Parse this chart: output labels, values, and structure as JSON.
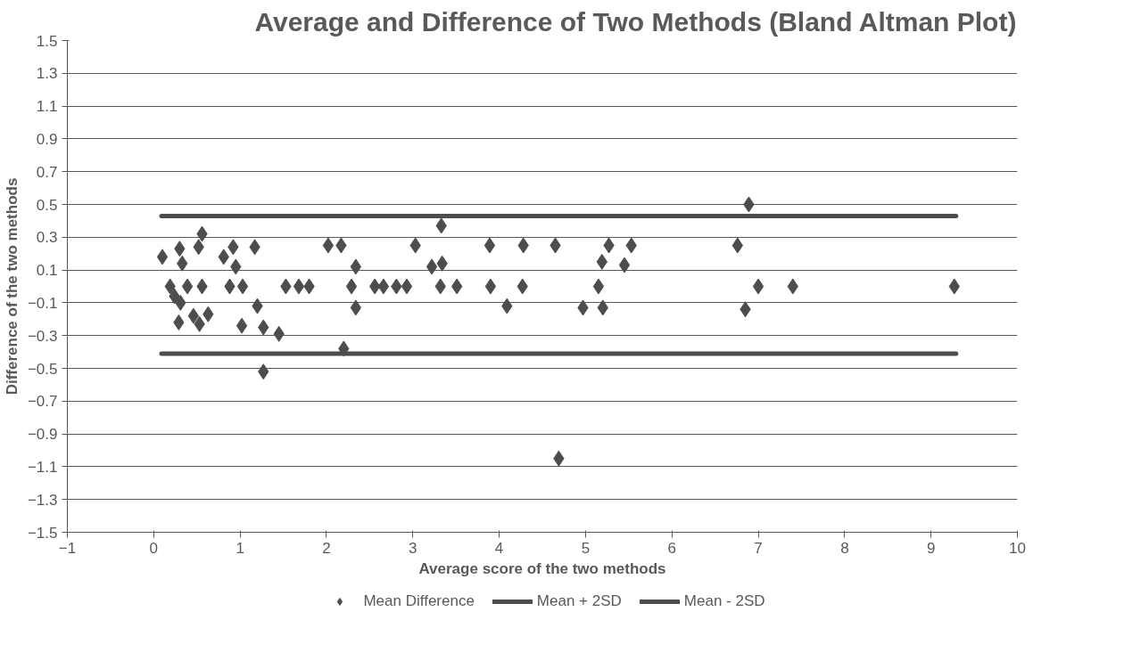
{
  "chart_data": {
    "type": "scatter",
    "title": "Average and Difference of Two Methods (Bland Altman Plot)",
    "xlabel": "Average score of the two methods",
    "ylabel": "Difference of the two methods",
    "xlim": [
      -1,
      10
    ],
    "xticks": [
      -1,
      0,
      1,
      2,
      3,
      4,
      5,
      6,
      7,
      8,
      9,
      10
    ],
    "ylim": [
      -1.5,
      1.5
    ],
    "yticks": [
      -1.5,
      -1.3,
      -1.1,
      -0.9,
      -0.7,
      -0.5,
      -0.3,
      -0.1,
      0.1,
      0.3,
      0.5,
      0.7,
      0.9,
      1.1,
      1.3,
      1.5
    ],
    "grid": "y",
    "legend": "bottom",
    "series": [
      {
        "name": "Mean Difference",
        "marker": "diamond",
        "color": "#4d4d4d",
        "x": [
          0.1,
          0.3,
          0.33,
          0.56,
          0.52,
          0.19,
          0.24,
          0.39,
          0.31,
          0.29,
          0.56,
          0.46,
          0.53,
          0.63,
          0.81,
          0.92,
          0.95,
          0.88,
          1.03,
          1.17,
          1.2,
          1.02,
          1.27,
          1.45,
          1.27,
          1.53,
          1.68,
          1.8,
          2.02,
          2.17,
          2.34,
          2.29,
          2.34,
          2.2,
          2.56,
          2.66,
          2.81,
          2.93,
          3.03,
          3.22,
          3.33,
          3.34,
          3.32,
          3.51,
          3.89,
          3.9,
          4.09,
          4.28,
          4.27,
          4.65,
          4.69,
          4.97,
          5.2,
          5.15,
          5.19,
          5.27,
          5.45,
          5.53,
          6.76,
          6.89,
          6.85,
          7.0,
          7.4,
          9.27
        ],
        "values": [
          0.18,
          0.23,
          0.14,
          0.32,
          0.24,
          0.0,
          -0.06,
          0.0,
          -0.1,
          -0.22,
          0.0,
          -0.18,
          -0.23,
          -0.17,
          0.18,
          0.24,
          0.12,
          0.0,
          0.0,
          0.24,
          -0.12,
          -0.24,
          -0.25,
          -0.29,
          -0.52,
          0.0,
          0.0,
          0.0,
          0.25,
          0.25,
          0.12,
          0.0,
          -0.13,
          -0.38,
          0.0,
          0.0,
          0.0,
          0.0,
          0.25,
          0.12,
          0.37,
          0.14,
          0.0,
          0.0,
          0.25,
          0.0,
          -0.12,
          0.25,
          0.0,
          0.25,
          -1.05,
          -0.13,
          -0.13,
          0.0,
          0.15,
          0.25,
          0.13,
          0.25,
          0.25,
          0.5,
          -0.14,
          0.0,
          0.0,
          0.0
        ]
      },
      {
        "name": "Mean + 2SD",
        "type": "line",
        "color": "#4d4d4d",
        "x": [
          0.09,
          9.29
        ],
        "values": [
          0.43,
          0.43
        ]
      },
      {
        "name": "Mean - 2SD",
        "type": "line",
        "color": "#4d4d4d",
        "x": [
          0.09,
          9.29
        ],
        "values": [
          -0.41,
          -0.41
        ]
      }
    ]
  }
}
